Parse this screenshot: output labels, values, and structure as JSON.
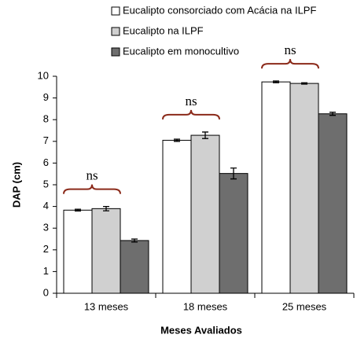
{
  "chart_data": {
    "type": "bar",
    "categories": [
      "13 meses",
      "18 meses",
      "25 meses"
    ],
    "series": [
      {
        "name": "Eucalipto consorciado com Acácia na ILPF",
        "color": "#ffffff",
        "values": [
          3.83,
          7.05,
          9.74
        ],
        "errors": [
          0.04,
          0.05,
          0.04
        ]
      },
      {
        "name": "Eucalipto na ILPF",
        "color": "#d0d0d0",
        "values": [
          3.9,
          7.28,
          9.67
        ],
        "errors": [
          0.1,
          0.15,
          0.03
        ]
      },
      {
        "name": "Eucalipto em monocultivo",
        "color": "#6e6e6e",
        "values": [
          2.43,
          5.52,
          8.27
        ],
        "errors": [
          0.07,
          0.25,
          0.07
        ]
      }
    ],
    "annotations": [
      "ns",
      "ns",
      "ns"
    ],
    "ylabel": "DAP (cm)",
    "xlabel": "Meses Avaliados",
    "ylim": [
      0,
      10
    ],
    "yticks": [
      0,
      1,
      2,
      3,
      4,
      5,
      6,
      7,
      8,
      9,
      10
    ]
  }
}
